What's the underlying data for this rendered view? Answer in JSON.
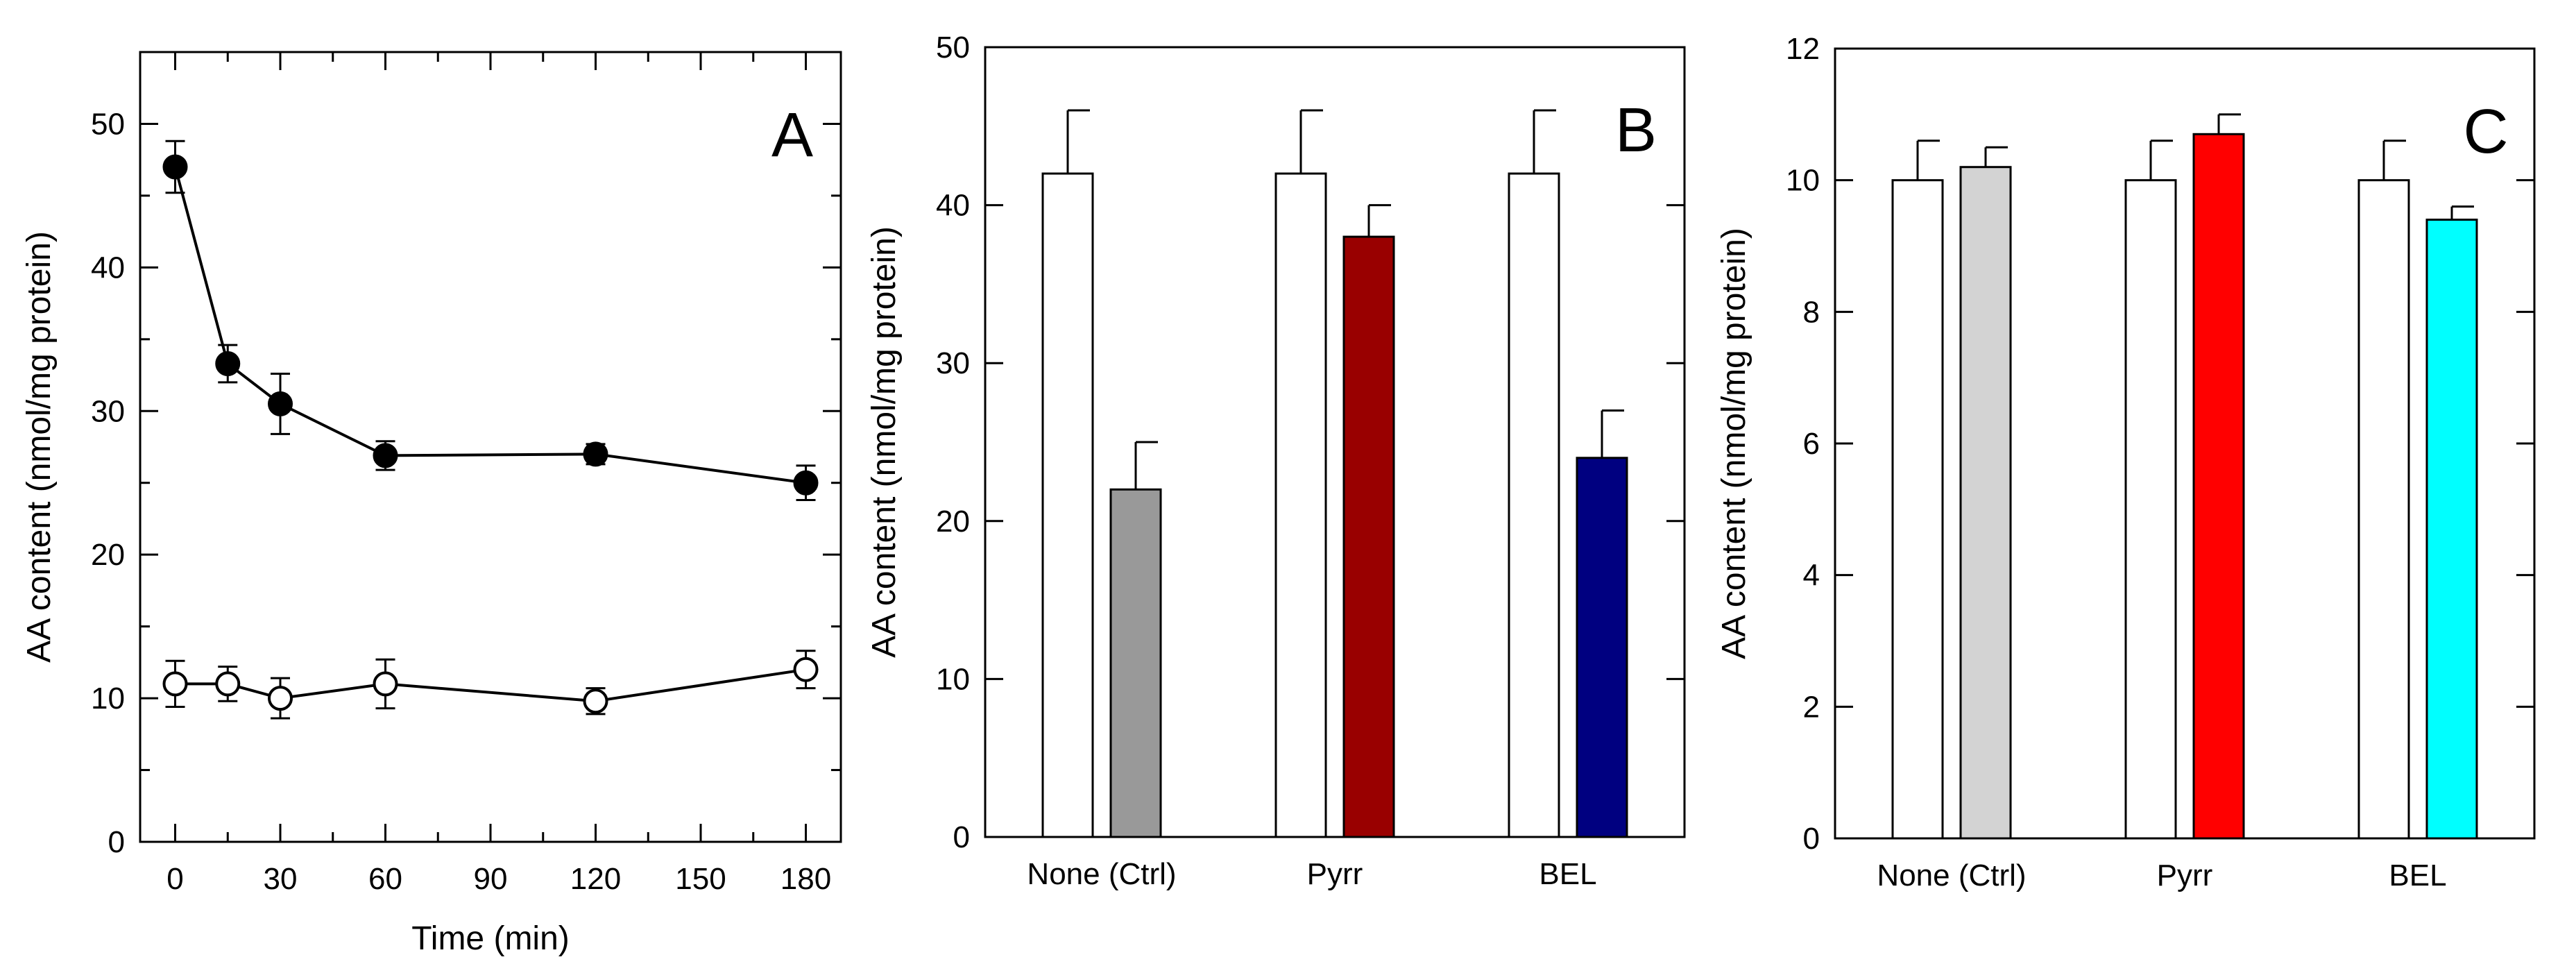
{
  "chart_data": [
    {
      "panel": "A",
      "type": "line",
      "xlabel": "Time (min)",
      "ylabel": "AA content (nmol/mg protein)",
      "xlim": [
        -10,
        190
      ],
      "ylim": [
        0,
        55
      ],
      "xticks": [
        0,
        30,
        60,
        90,
        120,
        150,
        180
      ],
      "yticks": [
        0,
        10,
        20,
        30,
        40,
        50
      ],
      "x": [
        0,
        15,
        30,
        60,
        120,
        180
      ],
      "series": [
        {
          "marker": "filled-circle",
          "values": [
            47,
            33.3,
            30.5,
            26.9,
            27,
            25
          ],
          "errors": [
            1.8,
            1.3,
            2.1,
            1,
            0.7,
            1.2
          ]
        },
        {
          "marker": "open-circle",
          "values": [
            11,
            11,
            10,
            11,
            9.8,
            12
          ],
          "errors": [
            1.6,
            1.2,
            1.4,
            1.7,
            0.9,
            1.3
          ]
        }
      ],
      "grid": false
    },
    {
      "panel": "B",
      "type": "bar",
      "ylabel": "AA content (nmol/mg protein)",
      "categories": [
        "None (Ctrl)",
        "Pyrr",
        "BEL"
      ],
      "ylim": [
        0,
        50
      ],
      "yticks": [
        0,
        10,
        20,
        30,
        40,
        50
      ],
      "series": [
        {
          "values": [
            42,
            42,
            42
          ],
          "errors": [
            4,
            4,
            4
          ],
          "colors": [
            "#ffffff",
            "#ffffff",
            "#ffffff"
          ]
        },
        {
          "values": [
            22,
            38,
            24
          ],
          "errors": [
            3,
            2,
            3
          ],
          "colors": [
            "#999999",
            "#990000",
            "#000080"
          ]
        }
      ],
      "grid": false
    },
    {
      "panel": "C",
      "type": "bar",
      "ylabel": "AA content (nmol/mg protein)",
      "categories": [
        "None (Ctrl)",
        "Pyrr",
        "BEL"
      ],
      "ylim": [
        0,
        12
      ],
      "yticks": [
        0,
        2,
        4,
        6,
        8,
        10,
        12
      ],
      "series": [
        {
          "values": [
            10,
            10,
            10
          ],
          "errors": [
            0.6,
            0.6,
            0.6
          ],
          "colors": [
            "#ffffff",
            "#ffffff",
            "#ffffff"
          ]
        },
        {
          "values": [
            10.2,
            10.7,
            9.4
          ],
          "errors": [
            0.3,
            0.3,
            0.2
          ],
          "colors": [
            "#d3d3d3",
            "#ff0000",
            "#00ffff"
          ]
        }
      ],
      "grid": false
    }
  ]
}
